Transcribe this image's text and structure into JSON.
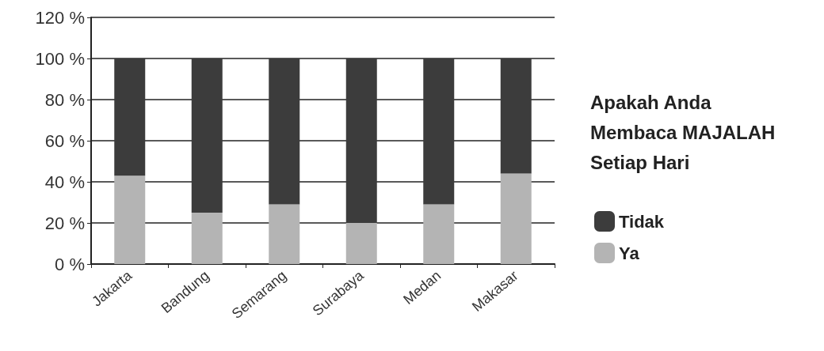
{
  "chart_data": {
    "type": "bar",
    "stacked": true,
    "legend_title": "Apakah Anda\nMembaca MAJALAH\nSetiap Hari",
    "categories": [
      "Jakarta",
      "Bandung",
      "Semarang",
      "Surabaya",
      "Medan",
      "Makasar"
    ],
    "series": [
      {
        "name": "Ya",
        "color": "#b4b4b4",
        "values": [
          43,
          25,
          29,
          20,
          29,
          44
        ]
      },
      {
        "name": "Tidak",
        "color": "#3c3c3c",
        "values": [
          57,
          75,
          71,
          80,
          71,
          56
        ]
      }
    ],
    "ylim": [
      0,
      120
    ],
    "yticks": [
      {
        "value": 0,
        "label": "0 %"
      },
      {
        "value": 20,
        "label": "20 %"
      },
      {
        "value": 40,
        "label": "40 %"
      },
      {
        "value": 60,
        "label": "60 %"
      },
      {
        "value": 80,
        "label": "80 %"
      },
      {
        "value": 100,
        "label": "100 %"
      },
      {
        "value": 120,
        "label": "120 %"
      }
    ],
    "grid": "y",
    "legend": "right"
  }
}
